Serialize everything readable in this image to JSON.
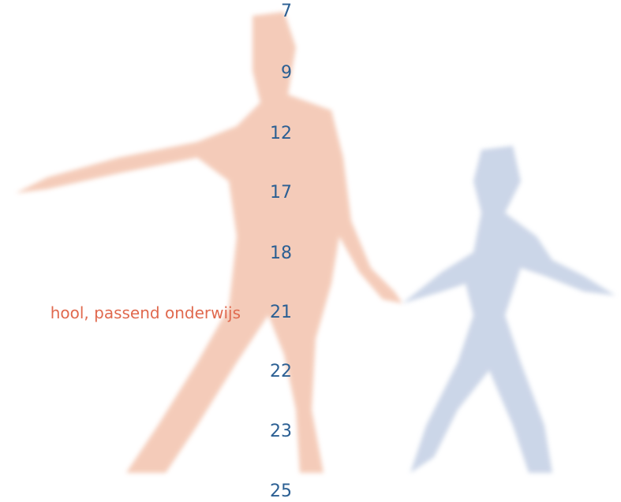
{
  "toc": {
    "entries": [
      {
        "page": 7
      },
      {
        "page": 9
      },
      {
        "page": 12
      },
      {
        "page": 17
      },
      {
        "page": 18
      },
      {
        "title": "hool, passend onderwijs",
        "page": 21
      },
      {
        "page": 22
      },
      {
        "page": 23
      },
      {
        "page": 25
      }
    ]
  }
}
